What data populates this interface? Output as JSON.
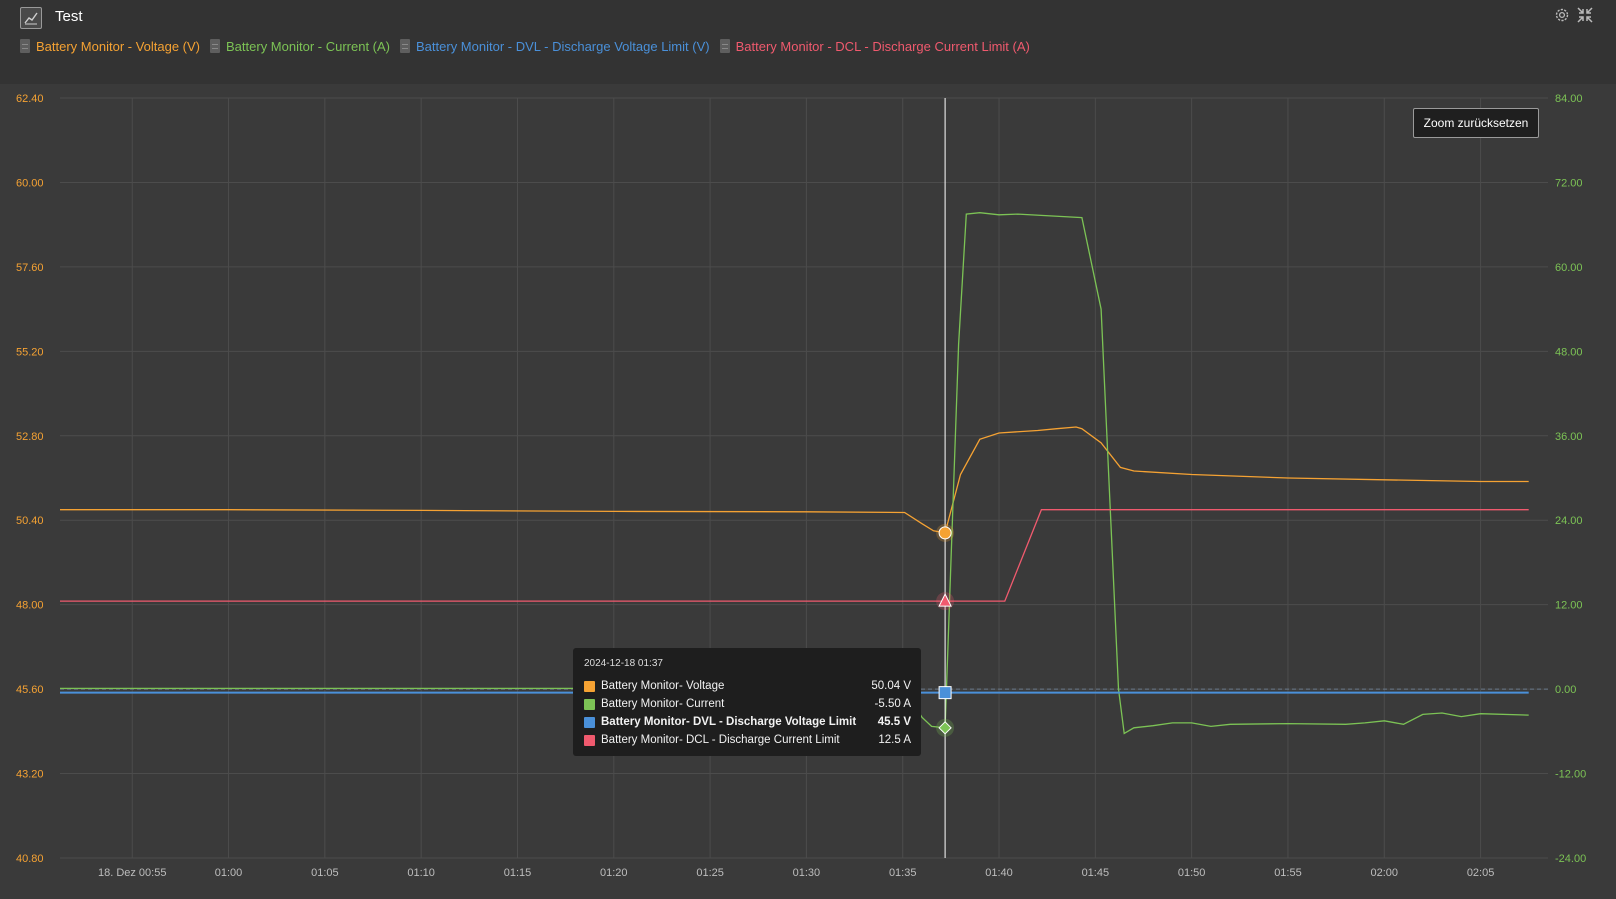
{
  "header": {
    "title": "Test",
    "icons": [
      "chart-icon",
      "gear-icon",
      "collapse-icon"
    ]
  },
  "legend": [
    {
      "label": "Battery Monitor - Voltage (V)",
      "color": "#f5a233"
    },
    {
      "label": "Battery Monitor - Current (A)",
      "color": "#7cc355"
    },
    {
      "label": "Battery Monitor - DVL - Discharge Voltage Limit (V)",
      "color": "#4a90d9"
    },
    {
      "label": "Battery Monitor - DCL - Discharge Current Limit (A)",
      "color": "#f05a6e"
    }
  ],
  "zoom_reset_label": "Zoom zurücksetzen",
  "tooltip": {
    "time": "2024-12-18 01:37",
    "rows": [
      {
        "label": "Battery Monitor- Voltage",
        "value": "50.04 V",
        "color": "#f5a233",
        "bold": false
      },
      {
        "label": "Battery Monitor- Current",
        "value": "-5.50 A",
        "color": "#7cc355",
        "bold": false
      },
      {
        "label": "Battery Monitor- DVL - Discharge Voltage Limit",
        "value": "45.5 V",
        "color": "#4a90d9",
        "bold": true
      },
      {
        "label": "Battery Monitor- DCL - Discharge Current Limit",
        "value": "12.5 A",
        "color": "#f05a6e",
        "bold": false
      }
    ]
  },
  "chart_data": {
    "type": "line",
    "x_tick_labels": [
      "18. Dez 00:55",
      "01:00",
      "01:05",
      "01:10",
      "01:15",
      "01:20",
      "01:25",
      "01:30",
      "01:35",
      "01:40",
      "01:45",
      "01:50",
      "01:55",
      "02:00",
      "02:05"
    ],
    "x_ticks_minutes": [
      55,
      60,
      65,
      70,
      75,
      80,
      85,
      90,
      95,
      100,
      105,
      110,
      115,
      120,
      125
    ],
    "xlim_minutes": [
      51.25,
      128.5
    ],
    "left_axis": {
      "color": "#f5a233",
      "ylim": [
        40.8,
        62.4
      ],
      "ticks": [
        "40.80",
        "43.20",
        "45.60",
        "48.00",
        "50.40",
        "52.80",
        "55.20",
        "57.60",
        "60.00",
        "62.40"
      ]
    },
    "right_axis": {
      "color": "#7cc355",
      "ylim": [
        -24,
        84
      ],
      "ticks": [
        "-24.00",
        "-12.00",
        "0.00",
        "12.00",
        "24.00",
        "36.00",
        "48.00",
        "60.00",
        "72.00",
        "84.00"
      ]
    },
    "crosshair_minute": 97.2,
    "grid": true,
    "series": [
      {
        "name": "Battery Monitor - Voltage (V)",
        "axis": "left",
        "color": "#f5a233",
        "points": [
          [
            51.25,
            50.7
          ],
          [
            60,
            50.7
          ],
          [
            70,
            50.68
          ],
          [
            80,
            50.65
          ],
          [
            90,
            50.64
          ],
          [
            95.1,
            50.62
          ],
          [
            96,
            50.3
          ],
          [
            96.6,
            50.1
          ],
          [
            97.2,
            50.04
          ],
          [
            98,
            51.7
          ],
          [
            99,
            52.7
          ],
          [
            100,
            52.88
          ],
          [
            102,
            52.95
          ],
          [
            103,
            53
          ],
          [
            104,
            53.05
          ],
          [
            104.3,
            53.0
          ],
          [
            105.3,
            52.6
          ],
          [
            106.3,
            51.9
          ],
          [
            107,
            51.8
          ],
          [
            110,
            51.7
          ],
          [
            115,
            51.6
          ],
          [
            120,
            51.55
          ],
          [
            125,
            51.5
          ],
          [
            127.5,
            51.5
          ]
        ]
      },
      {
        "name": "Battery Monitor - Current (A)",
        "axis": "right",
        "color": "#7cc355",
        "points": [
          [
            51.25,
            0.1
          ],
          [
            70,
            0.1
          ],
          [
            90,
            0.1
          ],
          [
            95.1,
            0
          ],
          [
            96,
            -4
          ],
          [
            96.5,
            -5.3
          ],
          [
            97.2,
            -5.5
          ],
          [
            97.9,
            49
          ],
          [
            98.3,
            67.5
          ],
          [
            99,
            67.7
          ],
          [
            100,
            67.4
          ],
          [
            101,
            67.5
          ],
          [
            104.3,
            67
          ],
          [
            105.3,
            54
          ],
          [
            106.2,
            0
          ],
          [
            106.5,
            -6.3
          ],
          [
            107,
            -5.5
          ],
          [
            108,
            -5.2
          ],
          [
            109,
            -4.8
          ],
          [
            110,
            -4.8
          ],
          [
            111,
            -5.3
          ],
          [
            112,
            -5
          ],
          [
            115,
            -4.9
          ],
          [
            118,
            -5
          ],
          [
            119,
            -4.8
          ],
          [
            120,
            -4.5
          ],
          [
            121,
            -5
          ],
          [
            122,
            -3.6
          ],
          [
            123,
            -3.4
          ],
          [
            124,
            -3.9
          ],
          [
            125,
            -3.5
          ],
          [
            127.5,
            -3.7
          ]
        ]
      },
      {
        "name": "Battery Monitor - DVL - Discharge Voltage Limit (V)",
        "axis": "left",
        "color": "#4a90d9",
        "points": [
          [
            51.25,
            45.5
          ],
          [
            97.2,
            45.5
          ],
          [
            127.5,
            45.5
          ]
        ]
      },
      {
        "name": "Battery Monitor - DCL - Discharge Current Limit (A)",
        "axis": "right",
        "color": "#f05a6e",
        "points": [
          [
            51.25,
            12.5
          ],
          [
            97.2,
            12.5
          ],
          [
            100.3,
            12.5
          ],
          [
            102.2,
            25.5
          ],
          [
            127.5,
            25.5
          ]
        ]
      }
    ]
  }
}
